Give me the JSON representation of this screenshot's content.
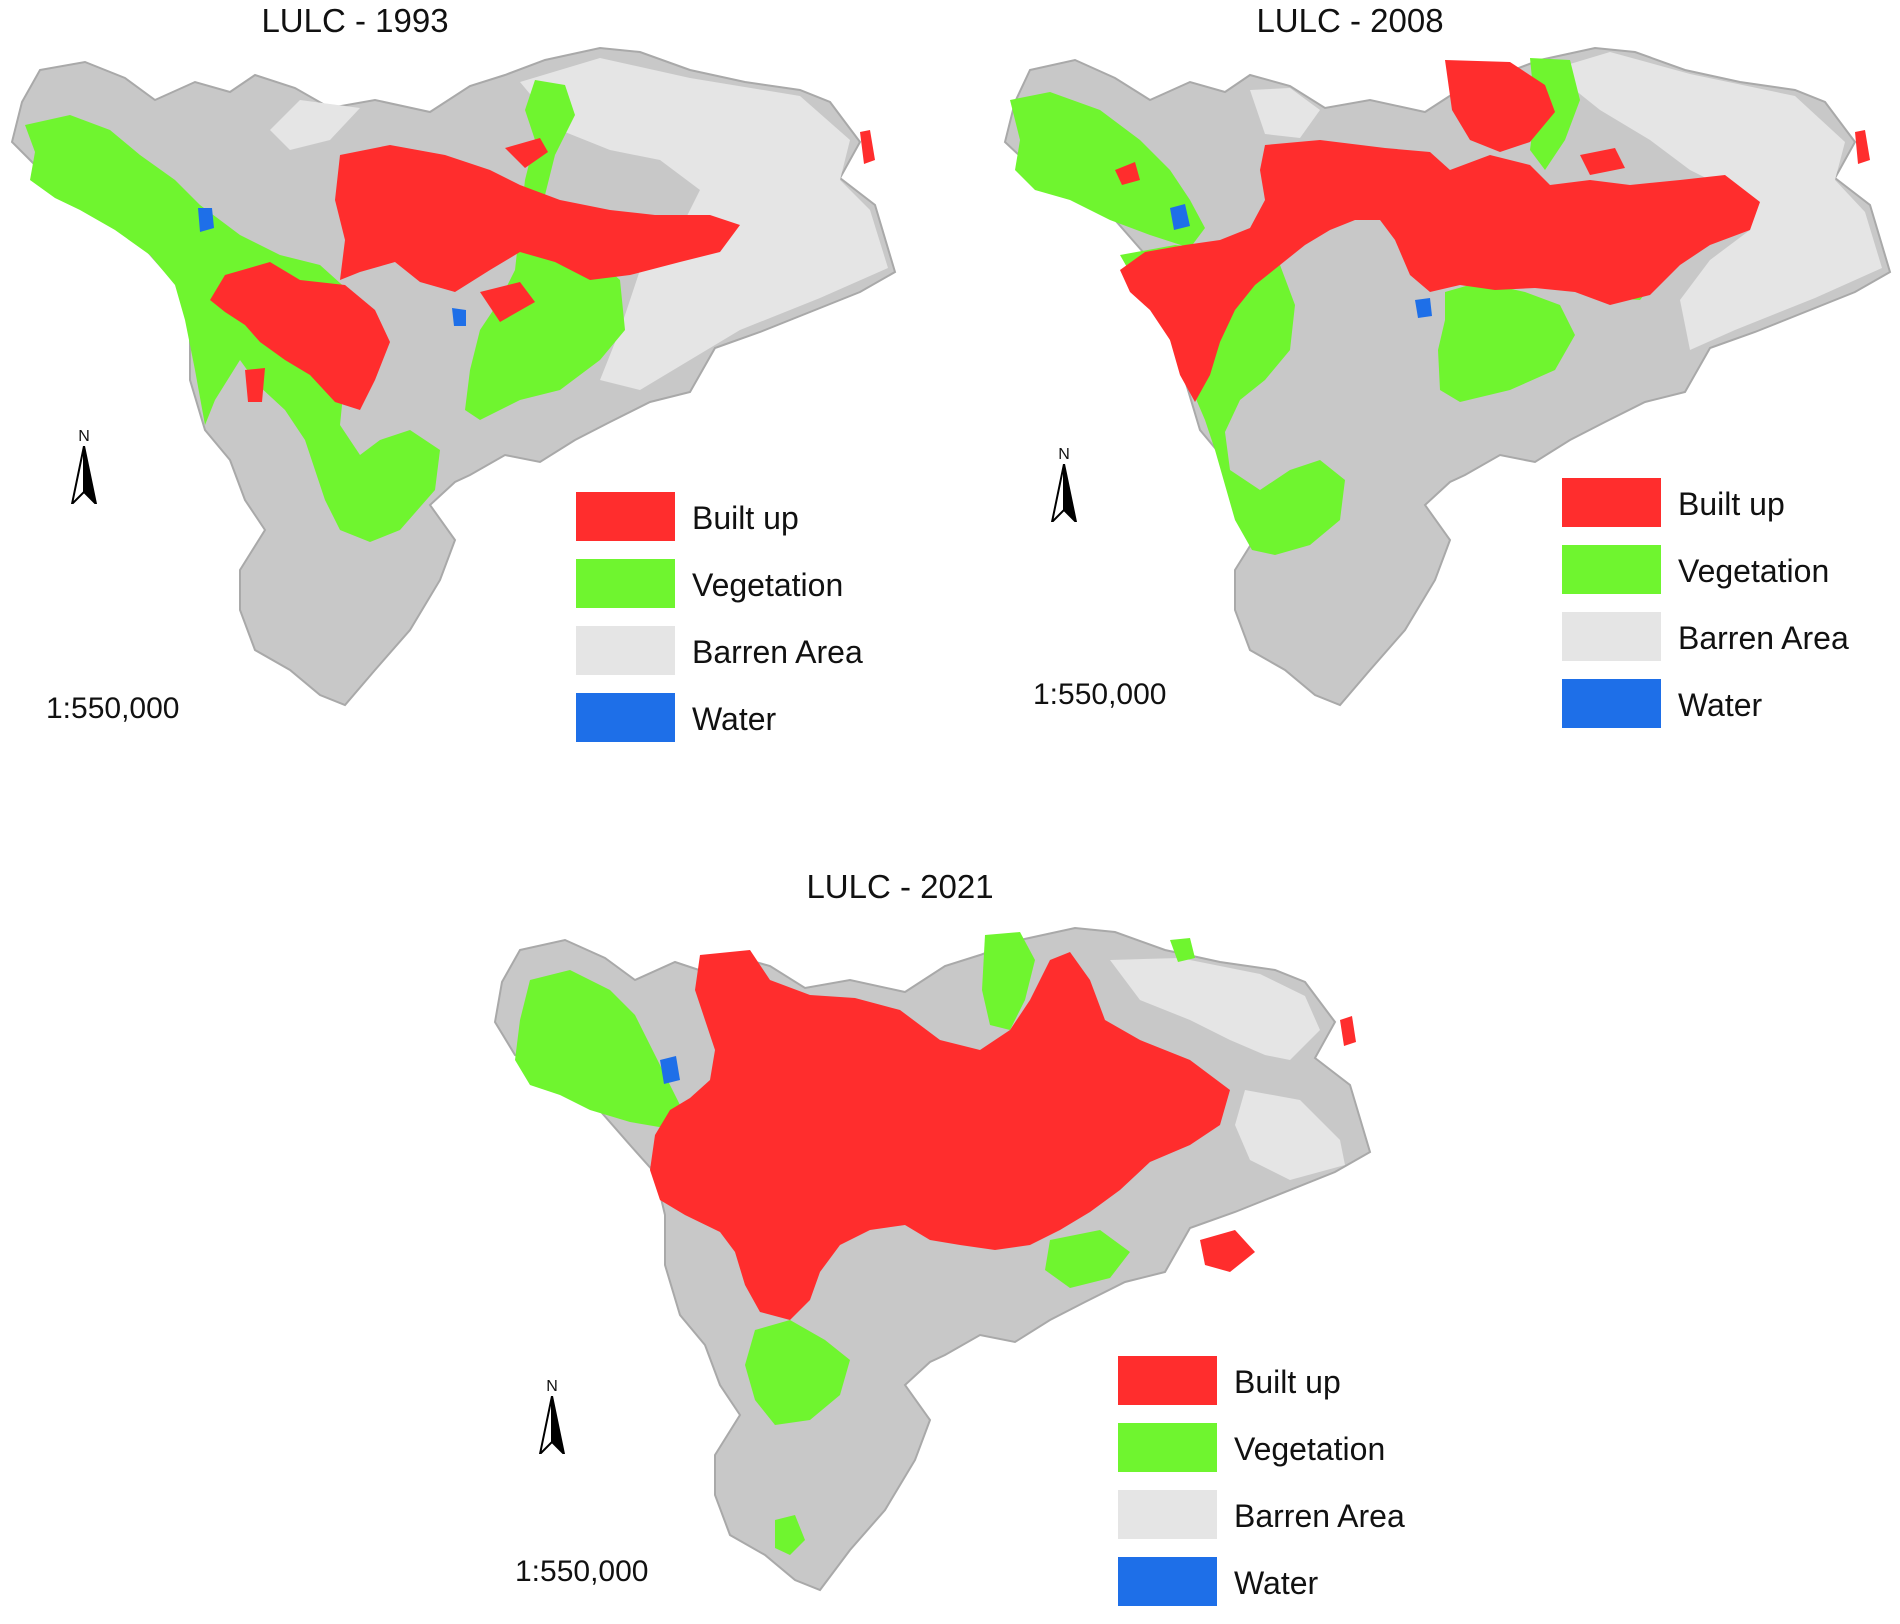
{
  "colors": {
    "built_up": "#ff2d2d",
    "vegetation": "#6ff52f",
    "barren": "#e5e5e5",
    "water": "#1e6fe8",
    "terrain": "#c8c8c8",
    "terrain_dark": "#a9a9a9"
  },
  "north_label": "N",
  "maps": [
    {
      "title": "LULC - 1993",
      "scale": "1:550,000",
      "legend": [
        {
          "label": "Built up",
          "color_key": "built_up"
        },
        {
          "label": "Vegetation",
          "color_key": "vegetation"
        },
        {
          "label": "Barren Area",
          "color_key": "barren"
        },
        {
          "label": "Water",
          "color_key": "water"
        }
      ]
    },
    {
      "title": "LULC - 2008",
      "scale": "1:550,000",
      "legend": [
        {
          "label": "Built up",
          "color_key": "built_up"
        },
        {
          "label": "Vegetation",
          "color_key": "vegetation"
        },
        {
          "label": "Barren Area",
          "color_key": "barren"
        },
        {
          "label": "Water",
          "color_key": "water"
        }
      ]
    },
    {
      "title": "LULC - 2021",
      "scale": "1:550,000",
      "legend": [
        {
          "label": "Built up",
          "color_key": "built_up"
        },
        {
          "label": "Vegetation",
          "color_key": "vegetation"
        },
        {
          "label": "Barren Area",
          "color_key": "barren"
        },
        {
          "label": "Water",
          "color_key": "water"
        }
      ]
    }
  ]
}
